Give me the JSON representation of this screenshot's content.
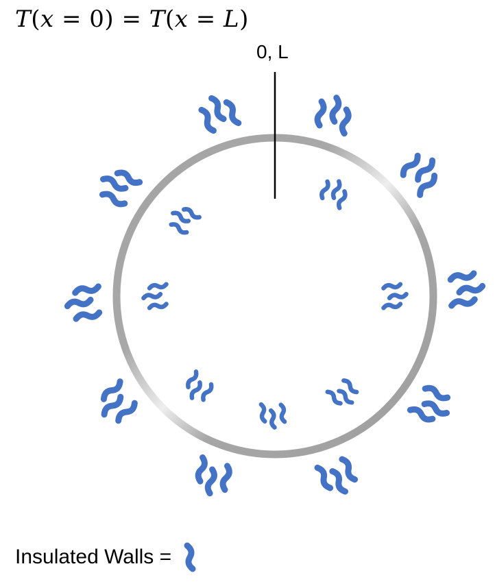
{
  "equation": {
    "lhs_T": "T",
    "lhs_open": "(",
    "lhs_x": "x",
    "lhs_eq": " = ",
    "lhs_val": "0",
    "lhs_close": ")",
    "mid_eq": " = ",
    "rhs_T": "T",
    "rhs_open": "(",
    "rhs_x": "x",
    "rhs_eq": " = ",
    "rhs_val": "L",
    "rhs_close": ")"
  },
  "seam_label": "0, L",
  "legend": {
    "label": "Insulated Walls =",
    "icon": "squiggle-icon"
  },
  "colors": {
    "ring": "#a6a6a6",
    "ring_highlight": "#e6e6e6",
    "squiggle": "#4472c4",
    "seam_line": "#000000"
  }
}
